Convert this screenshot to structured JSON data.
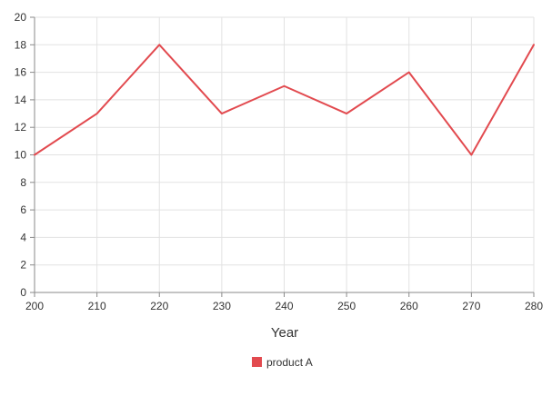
{
  "chart_data": {
    "type": "line",
    "title": "",
    "xlabel": "Year",
    "ylabel": "",
    "x": [
      200,
      210,
      220,
      230,
      240,
      250,
      260,
      270,
      280
    ],
    "xlim": [
      200,
      280
    ],
    "ylim": [
      0,
      20
    ],
    "x_ticks": [
      200,
      210,
      220,
      230,
      240,
      250,
      260,
      270,
      280
    ],
    "y_ticks": [
      0,
      2,
      4,
      6,
      8,
      10,
      12,
      14,
      16,
      18,
      20
    ],
    "grid": true,
    "legend_position": "bottom-center",
    "series": [
      {
        "name": "product A",
        "color": "#e24a4f",
        "values": [
          10,
          13,
          18,
          13,
          15,
          13,
          16,
          10,
          18
        ]
      }
    ]
  }
}
